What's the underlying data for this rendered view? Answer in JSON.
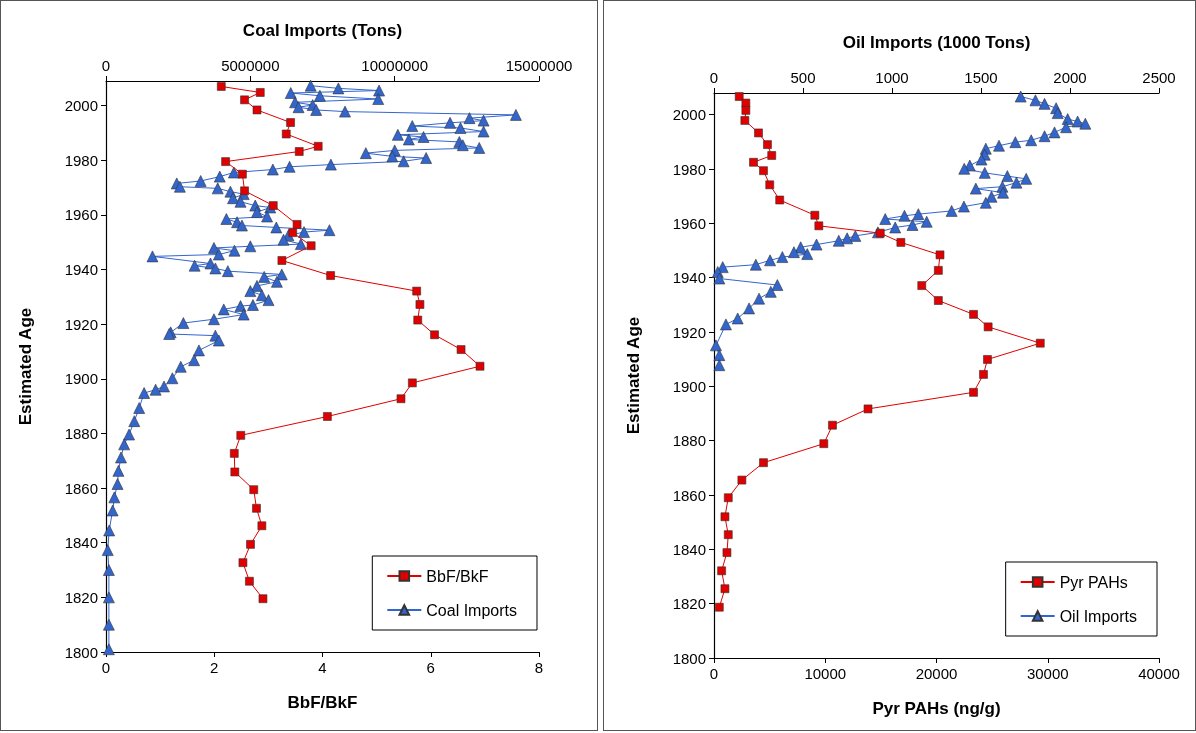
{
  "chart_data": [
    {
      "type": "line",
      "xlabel": "BbF/BkF",
      "x2label": "Coal Imports (Tons)",
      "ylabel": "Estimated Age",
      "xlim": [
        0,
        8
      ],
      "xticks": [
        0,
        2,
        4,
        6,
        8
      ],
      "x2lim": [
        0,
        15000000
      ],
      "x2ticks": [
        0,
        5000000,
        10000000,
        15000000
      ],
      "ylim": [
        1800,
        2009
      ],
      "yticks": [
        1800,
        1820,
        1840,
        1860,
        1880,
        1900,
        1920,
        1940,
        1960,
        1980,
        2000
      ],
      "grid": false,
      "legend": "bottom right",
      "series": [
        {
          "name": "BbF/BkF",
          "color": "#e00000",
          "marker": "square",
          "x": [
            2.13,
            2.85,
            2.56,
            2.79,
            3.41,
            3.33,
            3.92,
            3.57,
            2.21,
            2.52,
            2.56,
            3.09,
            3.53,
            3.45,
            3.79,
            3.25,
            4.15,
            5.74,
            5.8,
            5.76,
            6.07,
            6.56,
            6.91,
            5.66,
            5.45,
            4.09,
            2.49,
            2.37,
            2.38,
            2.73,
            2.78,
            2.88,
            2.67,
            2.53,
            2.65,
            2.9
          ],
          "values": [
            2007.0,
            2004.8,
            2002.1,
            1998.4,
            1993.8,
            1989.6,
            1985.1,
            1983.2,
            1979.5,
            1974.9,
            1968.8,
            1963.4,
            1956.5,
            1953.5,
            1948.7,
            1943.3,
            1937.8,
            1932.1,
            1927.2,
            1921.5,
            1916.1,
            1910.7,
            1904.6,
            1898.5,
            1892.7,
            1886.2,
            1879.3,
            1872.7,
            1865.9,
            1859.4,
            1852.6,
            1846.2,
            1839.4,
            1832.7,
            1825.9,
            1819.5
          ]
        },
        {
          "name": "Coal Imports",
          "color": "#3366cc",
          "marker": "triangle",
          "axis": "x2",
          "x": [
            7090000,
            8050000,
            9460000,
            6400000,
            7410000,
            9430000,
            6550000,
            7160000,
            6670000,
            7280000,
            8280000,
            14200000,
            12590000,
            13080000,
            11920000,
            10610000,
            12280000,
            13080000,
            10110000,
            11000000,
            10490000,
            12240000,
            12360000,
            12930000,
            10000000,
            9000000,
            9920000,
            11090000,
            10310000,
            7790000,
            6360000,
            5780000,
            4430000,
            3940000,
            3280000,
            2450000,
            2560000,
            3870000,
            4310000,
            4770000,
            4400000,
            4660000,
            5170000,
            5690000,
            5230000,
            5580000,
            4170000,
            4540000,
            4710000,
            5900000,
            7740000,
            6860000,
            6320000,
            6150000,
            6750000,
            5000000,
            3740000,
            4450000,
            3910000,
            1610000,
            3620000,
            3070000,
            3790000,
            4220000,
            6090000,
            5480000,
            5920000,
            5230000,
            5000000,
            5400000,
            5630000,
            5090000,
            4660000,
            4080000,
            4770000,
            3740000,
            2680000,
            2240000,
            2190000,
            3790000,
            3910000,
            3220000,
            3050000,
            2590000,
            2300000,
            2010000,
            1720000,
            1320000,
            1150000,
            980000,
            800000,
            630000,
            520000,
            430000,
            400000,
            290000,
            230000,
            110000,
            60000,
            100000,
            100000,
            100000,
            100000
          ],
          "values": [
            2007.3,
            2006.3,
            2005.5,
            2004.6,
            2003.6,
            2002.4,
            2001.2,
            2000.2,
            1999.4,
            1998.4,
            1997.8,
            1996.6,
            1995.4,
            1994.5,
            1993.7,
            1992.5,
            1991.8,
            1990.5,
            1989.3,
            1988.5,
            1987.6,
            1986.7,
            1985.5,
            1984.5,
            1983.6,
            1982.6,
            1981.4,
            1980.8,
            1979.6,
            1978.4,
            1977.6,
            1976.6,
            1975.5,
            1974.0,
            1972.4,
            1971.5,
            1970.3,
            1969.7,
            1968.5,
            1967.6,
            1966.1,
            1964.8,
            1963.4,
            1962.7,
            1961.0,
            1959.4,
            1958.5,
            1957.3,
            1956.1,
            1955.4,
            1954.4,
            1953.7,
            1952.5,
            1950.9,
            1949.3,
            1948.5,
            1947.9,
            1946.9,
            1945.5,
            1944.8,
            1942.2,
            1941.4,
            1940.4,
            1939.4,
            1938.2,
            1937.3,
            1935.5,
            1934.0,
            1932.1,
            1930.6,
            1928.8,
            1927.0,
            1926.6,
            1925.4,
            1923.5,
            1921.8,
            1920.4,
            1917.0,
            1916.4,
            1915.8,
            1914.0,
            1910.4,
            1906.8,
            1904.4,
            1900.2,
            1897.2,
            1896.0,
            1894.8,
            1889.3,
            1884.5,
            1879.6,
            1876.0,
            1871.2,
            1866.3,
            1861.5,
            1856.6,
            1851.8,
            1844.5,
            1837.3,
            1830.0,
            1820.0,
            1810.0,
            1801.0
          ]
        }
      ]
    },
    {
      "type": "line",
      "xlabel": "Pyr PAHs (ng/g)",
      "x2label": "Oil Imports (1000 Tons)",
      "ylabel": "Estimated Age",
      "xlim": [
        0,
        40000
      ],
      "xticks": [
        0,
        10000,
        20000,
        30000,
        40000
      ],
      "x2lim": [
        0,
        2500
      ],
      "x2ticks": [
        0,
        500,
        1000,
        1500,
        2000,
        2500
      ],
      "ylim": [
        1800,
        2008
      ],
      "yticks": [
        1800,
        1820,
        1840,
        1860,
        1880,
        1900,
        1920,
        1940,
        1960,
        1980,
        2000
      ],
      "grid": false,
      "legend": "bottom right",
      "series": [
        {
          "name": "Pyr PAHs",
          "color": "#e00000",
          "marker": "square",
          "x": [
            2266,
            2864,
            2864,
            2774,
            4000,
            4805,
            5190,
            3553,
            4448,
            5011,
            5906,
            9066,
            9424,
            14945,
            16797,
            20314,
            20165,
            18676,
            20165,
            23330,
            24641,
            29327,
            24581,
            24223,
            23330,
            13844,
            10649,
            9871,
            4448,
            2506,
            1282,
            984,
            1282,
            1163,
            686,
            984,
            477
          ],
          "values": [
            2006.7,
            2004.3,
            2001.6,
            1997.9,
            1993.3,
            1989.0,
            1985.0,
            1982.5,
            1979.4,
            1974.2,
            1968.6,
            1963.0,
            1959.1,
            1956.4,
            1953.0,
            1948.4,
            1942.7,
            1937.1,
            1931.6,
            1926.5,
            1921.9,
            1915.9,
            1909.9,
            1904.4,
            1897.8,
            1891.7,
            1885.7,
            1878.9,
            1871.9,
            1865.5,
            1859.0,
            1852.0,
            1845.4,
            1838.8,
            1832.1,
            1825.5,
            1818.7
          ]
        },
        {
          "name": "Oil Imports",
          "color": "#3366cc",
          "marker": "triangle",
          "axis": "x2",
          "x": [
            1723,
            1806,
            1857,
            1922,
            1931,
            1987,
            2043,
            2086,
            1978,
            1913,
            1857,
            1782,
            1693,
            1601,
            1527,
            1521,
            1503,
            1437,
            1406,
            1521,
            1648,
            1754,
            1699,
            1620,
            1471,
            1624,
            1559,
            1527,
            1404,
            1335,
            1148,
            1070,
            962,
            1195,
            1115,
            1018,
            921,
            794,
            748,
            701,
            576,
            487,
            449,
            524,
            384,
            315,
            235,
            49,
            21,
            30,
            356,
            319,
            253,
            197,
            133,
            67,
            11,
            30,
            30
          ],
          "values": [
            2006.7,
            2005.3,
            2004.0,
            2002.4,
            2000.6,
            1998.4,
            1997.5,
            1996.7,
            1995.4,
            1993.5,
            1992.1,
            1990.6,
            1989.9,
            1988.6,
            1987.5,
            1985.3,
            1983.5,
            1981.3,
            1980.1,
            1978.6,
            1977.4,
            1976.4,
            1975.0,
            1973.5,
            1972.8,
            1971.3,
            1969.8,
            1967.6,
            1966.2,
            1964.6,
            1963.4,
            1962.8,
            1961.6,
            1960.6,
            1959.4,
            1958.5,
            1956.7,
            1955.4,
            1954.5,
            1953.6,
            1952.2,
            1951.2,
            1949.4,
            1948.7,
            1947.6,
            1946.4,
            1944.8,
            1943.9,
            1942.1,
            1939.7,
            1937.3,
            1934.8,
            1932.3,
            1928.7,
            1925.0,
            1922.8,
            1915.1,
            1911.5,
            1907.8
          ]
        }
      ]
    }
  ]
}
